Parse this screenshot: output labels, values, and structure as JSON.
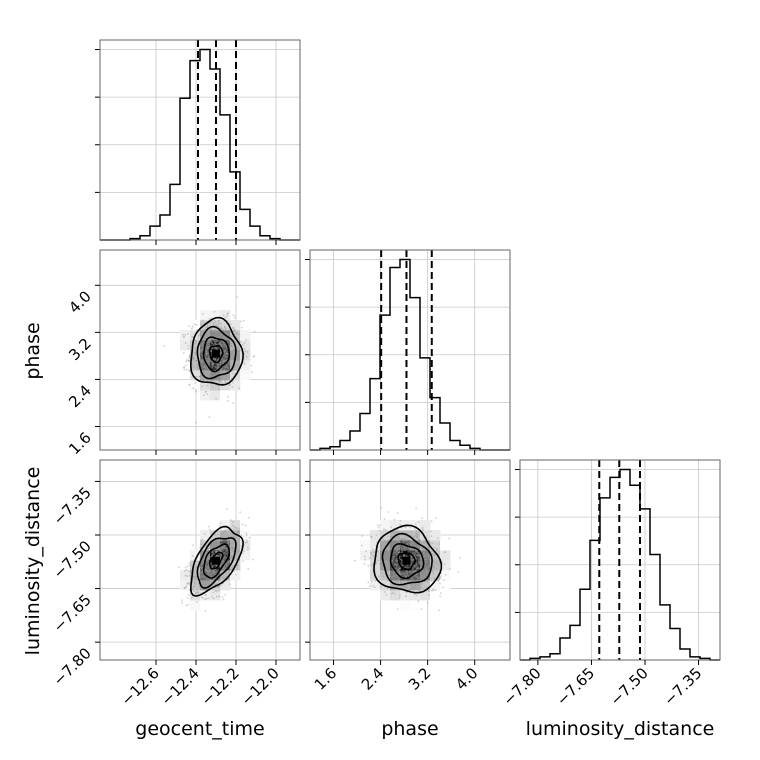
{
  "chart_data": {
    "type": "corner",
    "parameters": [
      "geocent_time",
      "phase",
      "luminosity_distance"
    ],
    "ranges": {
      "geocent_time": [
        -12.88,
        -11.88
      ],
      "phase": [
        1.2,
        4.6
      ],
      "luminosity_distance": [
        -7.85,
        -7.29
      ]
    },
    "ticks": {
      "geocent_time": {
        "values": [
          -12.6,
          -12.4,
          -12.2,
          -12.0
        ],
        "labels": [
          "−12.6",
          "−12.4",
          "−12.2",
          "−12.0"
        ]
      },
      "phase": {
        "values": [
          1.6,
          2.4,
          3.2,
          4.0
        ],
        "labels": [
          "1.6",
          "2.4",
          "3.2",
          "4.0"
        ]
      },
      "luminosity_distance": {
        "values": [
          -7.8,
          -7.65,
          -7.5,
          -7.35
        ],
        "labels": [
          "−7.80",
          "−7.65",
          "−7.50",
          "−7.35"
        ]
      }
    },
    "quantiles": {
      "geocent_time": [
        -12.39,
        -12.3,
        -12.2
      ],
      "phase": [
        2.41,
        2.84,
        3.27
      ],
      "luminosity_distance": [
        -7.628,
        -7.572,
        -7.514
      ]
    },
    "histograms": {
      "geocent_time": {
        "bins": [
          -12.88,
          -12.83,
          -12.78,
          -12.73,
          -12.68,
          -12.63,
          -12.58,
          -12.53,
          -12.48,
          -12.43,
          -12.38,
          -12.33,
          -12.28,
          -12.23,
          -12.18,
          -12.13,
          -12.08,
          -12.03,
          -11.98,
          -11.93,
          -11.88
        ],
        "counts": [
          0,
          0,
          0,
          1,
          3,
          10,
          18,
          40,
          102,
          129,
          137,
          123,
          90,
          49,
          22,
          10,
          3,
          1,
          0,
          0
        ]
      },
      "phase": {
        "bins": [
          1.2,
          1.37,
          1.54,
          1.71,
          1.88,
          2.05,
          2.22,
          2.39,
          2.56,
          2.73,
          2.9,
          3.07,
          3.24,
          3.41,
          3.58,
          3.75,
          3.92,
          4.09,
          4.26,
          4.43,
          4.6
        ],
        "counts": [
          0,
          1,
          2,
          6,
          12,
          23,
          45,
          85,
          115,
          120,
          96,
          58,
          33,
          17,
          6,
          3,
          1,
          0,
          0,
          0
        ]
      },
      "luminosity_distance": {
        "bins": [
          -7.85,
          -7.822,
          -7.794,
          -7.766,
          -7.738,
          -7.71,
          -7.682,
          -7.654,
          -7.626,
          -7.598,
          -7.57,
          -7.542,
          -7.514,
          -7.486,
          -7.458,
          -7.43,
          -7.402,
          -7.374,
          -7.346,
          -7.318,
          -7.29
        ],
        "counts": [
          0,
          1,
          2,
          4,
          14,
          22,
          45,
          76,
          103,
          116,
          121,
          111,
          96,
          67,
          35,
          20,
          7,
          2,
          1,
          0
        ]
      }
    },
    "scatter": {
      "geocent_time|phase": {
        "center": [
          -12.3,
          2.84
        ],
        "sigma": [
          0.064,
          0.28
        ],
        "rho": 0.0
      },
      "geocent_time|luminosity_distance": {
        "center": [
          -12.3,
          -7.572
        ],
        "sigma": [
          0.064,
          0.046
        ],
        "rho": 0.55
      },
      "phase|luminosity_distance": {
        "center": [
          2.84,
          -7.572
        ],
        "sigma": [
          0.28,
          0.046
        ],
        "rho": -0.1
      }
    },
    "grid": true
  }
}
